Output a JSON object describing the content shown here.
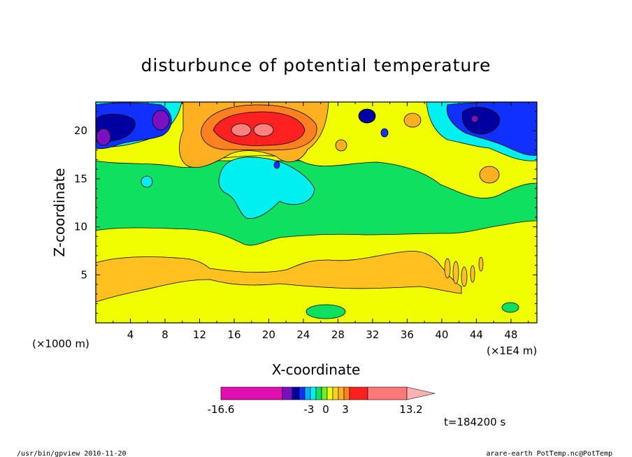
{
  "chart_data": {
    "type": "heatmap",
    "title": "disturbunce of potential temperature",
    "xlabel": "X-coordinate",
    "ylabel": "Z-coordinate",
    "x_unit_left": "(×1000 m)",
    "x_unit_right": "(×1E4 m)",
    "x_tick_labels": [
      "4",
      "8",
      "12",
      "16",
      "20",
      "24",
      "28",
      "32",
      "36",
      "40",
      "44",
      "48"
    ],
    "y_tick_labels": [
      "5",
      "10",
      "15",
      "20"
    ],
    "xlim": [
      0,
      51
    ],
    "ylim": [
      0,
      23
    ],
    "colorbar": {
      "tick_labels": [
        "-16.6",
        "-3",
        "0",
        "3",
        "13.2"
      ],
      "colors": [
        "#e010b0",
        "#7a10c0",
        "#0000a0",
        "#1030ff",
        "#00b0ff",
        "#00f0f0",
        "#10e060",
        "#70f020",
        "#f0ff00",
        "#ffd020",
        "#ffb020",
        "#ff8020",
        "#ff2020",
        "#ff7878",
        "#ffb0b0"
      ]
    },
    "fields": [
      {
        "name": "lower-warm-layer",
        "level": "light-orange",
        "x_range": [
          0,
          51
        ],
        "z_range": [
          2.5,
          8.5
        ]
      },
      {
        "name": "mid-neutral-layer",
        "level": "green",
        "x_range": [
          0,
          51
        ],
        "z_range": [
          9.5,
          16.5
        ]
      },
      {
        "name": "upper-warm-core",
        "level": "red",
        "x_center": 19,
        "z_center": 20.2
      },
      {
        "name": "upper-cold-core-left",
        "level": "dark-blue",
        "x_center": 3,
        "z_center": 20.5
      },
      {
        "name": "upper-cold-core-right",
        "level": "dark-blue",
        "x_center": 44,
        "z_center": 20.8
      },
      {
        "name": "cold-pool-center",
        "level": "cyan",
        "x_center": 19,
        "z_center": 15
      }
    ]
  },
  "footer": {
    "time": "t=184200 s",
    "left": "/usr/bin/gpview   2010-11-20",
    "right": "arare-earth_PotTemp.nc@PotTemp"
  }
}
